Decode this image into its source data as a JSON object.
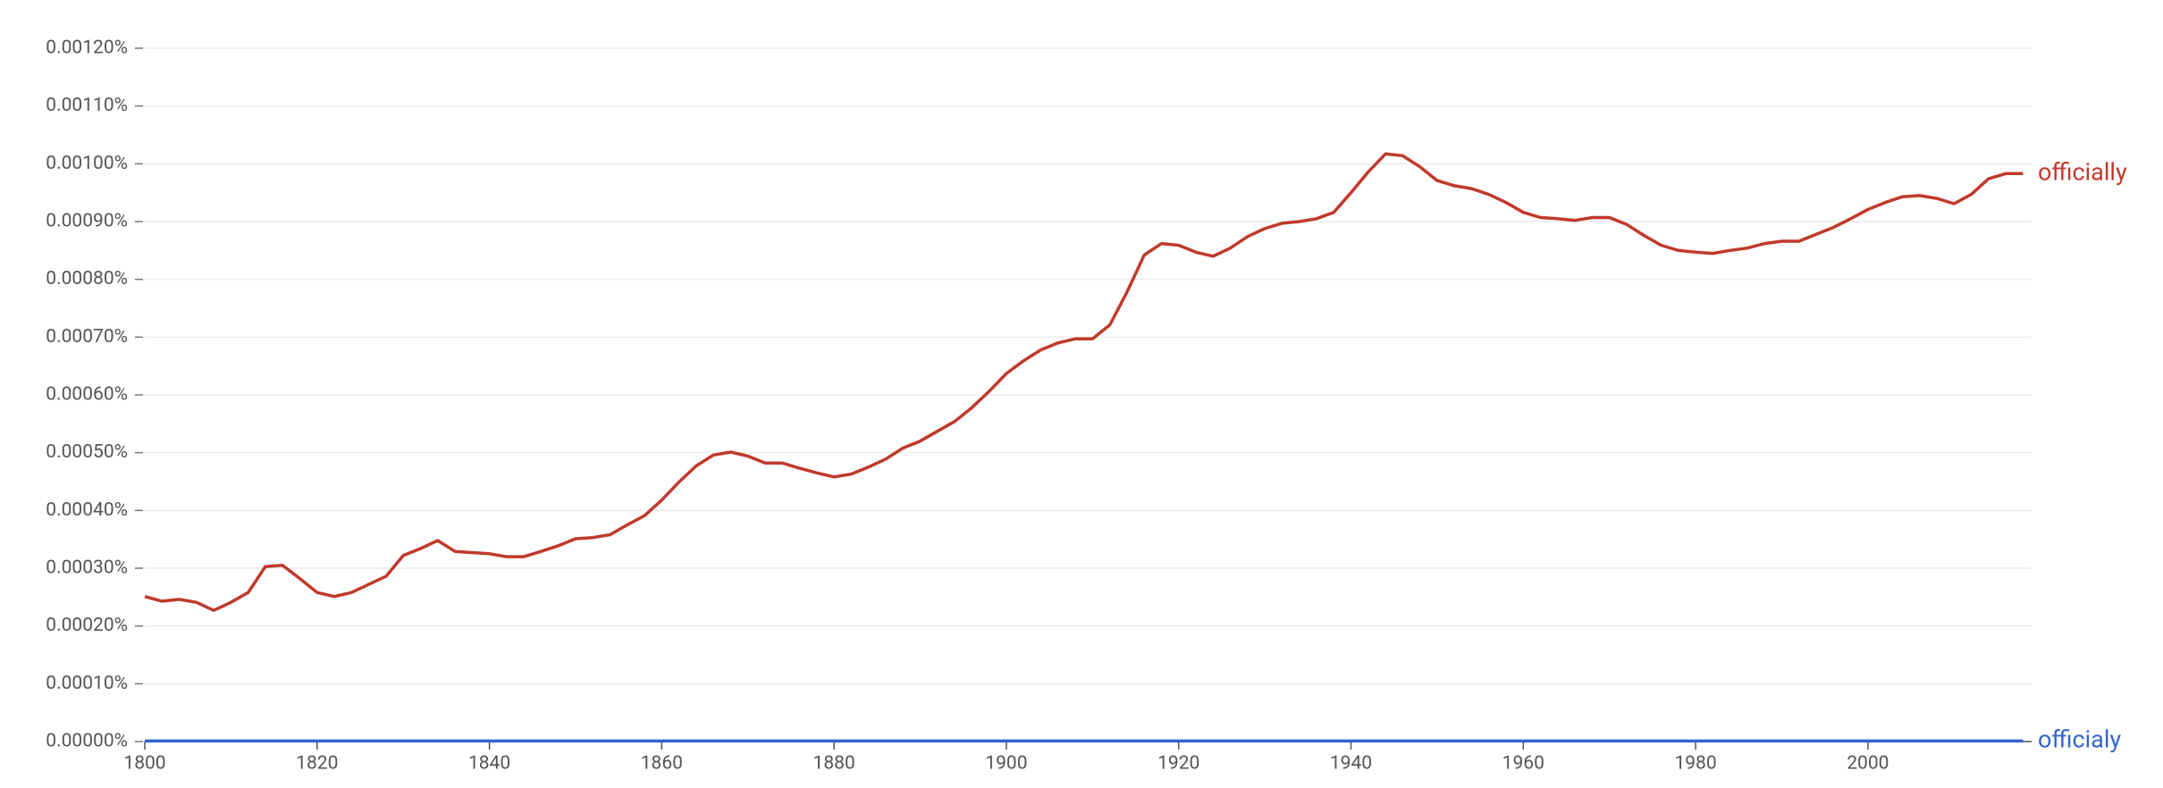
{
  "chart_data": {
    "type": "line",
    "x": [
      1800,
      1802,
      1804,
      1806,
      1808,
      1810,
      1812,
      1814,
      1816,
      1818,
      1820,
      1822,
      1824,
      1826,
      1828,
      1830,
      1832,
      1834,
      1836,
      1838,
      1840,
      1842,
      1844,
      1846,
      1848,
      1850,
      1852,
      1854,
      1856,
      1858,
      1860,
      1862,
      1864,
      1866,
      1868,
      1870,
      1872,
      1874,
      1876,
      1878,
      1880,
      1882,
      1884,
      1886,
      1888,
      1890,
      1892,
      1894,
      1896,
      1898,
      1900,
      1902,
      1904,
      1906,
      1908,
      1910,
      1912,
      1914,
      1916,
      1918,
      1920,
      1922,
      1924,
      1926,
      1928,
      1930,
      1932,
      1934,
      1936,
      1938,
      1940,
      1942,
      1944,
      1946,
      1948,
      1950,
      1952,
      1954,
      1956,
      1958,
      1960,
      1962,
      1964,
      1966,
      1968,
      1970,
      1972,
      1974,
      1976,
      1978,
      1980,
      1982,
      1984,
      1986,
      1988,
      1990,
      1992,
      1994,
      1996,
      1998,
      2000,
      2002,
      2004,
      2006,
      2008,
      2010,
      2012,
      2014,
      2016,
      2018
    ],
    "series": [
      {
        "name": "officially",
        "color": "#c0392b",
        "values": [
          0.000251,
          0.000243,
          0.000246,
          0.000241,
          0.000227,
          0.000241,
          0.000258,
          0.000303,
          0.000305,
          0.000282,
          0.000258,
          0.000251,
          0.000258,
          0.000272,
          0.000286,
          0.000322,
          0.000334,
          0.000348,
          0.000329,
          0.000327,
          0.000325,
          0.00032,
          0.00032,
          0.000329,
          0.000339,
          0.000351,
          0.000353,
          0.000358,
          0.000375,
          0.000391,
          0.000418,
          0.000449,
          0.000477,
          0.000496,
          0.000501,
          0.000494,
          0.000482,
          0.000482,
          0.000473,
          0.000465,
          0.000458,
          0.000463,
          0.000475,
          0.000489,
          0.000508,
          0.00052,
          0.000537,
          0.000554,
          0.000578,
          0.000606,
          0.000637,
          0.000659,
          0.000678,
          0.00069,
          0.000697,
          0.000697,
          0.000721,
          0.000778,
          0.000842,
          0.000862,
          0.000859,
          0.000847,
          0.00084,
          0.000854,
          0.000874,
          0.000888,
          0.000897,
          0.0009,
          0.000905,
          0.000916,
          0.00095,
          0.000986,
          0.001017,
          0.001014,
          0.000995,
          0.000971,
          0.000962,
          0.000957,
          0.000947,
          0.000933,
          0.000916,
          0.000907,
          0.000905,
          0.000902,
          0.000907,
          0.000907,
          0.000895,
          0.000876,
          0.000859,
          0.00085,
          0.000847,
          0.000845,
          0.00085,
          0.000854,
          0.000862,
          0.000866,
          0.000866,
          0.000878,
          0.00089,
          0.000905,
          0.000921,
          0.000933,
          0.000943,
          0.000945,
          0.00094,
          0.000931,
          0.000947,
          0.000974,
          0.000983,
          0.000983
        ]
      },
      {
        "name": "officialy",
        "color": "#3366cc",
        "values": [
          1e-06,
          1e-06,
          1e-06,
          1e-06,
          1e-06,
          1e-06,
          1e-06,
          1e-06,
          1e-06,
          1e-06,
          1e-06,
          1e-06,
          1e-06,
          1e-06,
          1e-06,
          1e-06,
          1e-06,
          1e-06,
          1e-06,
          1e-06,
          1e-06,
          1e-06,
          1e-06,
          1e-06,
          1e-06,
          1e-06,
          1e-06,
          1e-06,
          1e-06,
          1e-06,
          1e-06,
          1e-06,
          1e-06,
          1e-06,
          1e-06,
          1e-06,
          1e-06,
          1e-06,
          1e-06,
          1e-06,
          1e-06,
          1e-06,
          1e-06,
          1e-06,
          1e-06,
          1e-06,
          1e-06,
          1e-06,
          1e-06,
          1e-06,
          1e-06,
          1e-06,
          1e-06,
          1e-06,
          1e-06,
          1e-06,
          1e-06,
          1e-06,
          1e-06,
          1e-06,
          1e-06,
          1e-06,
          1e-06,
          1e-06,
          1e-06,
          1e-06,
          1e-06,
          1e-06,
          1e-06,
          1e-06,
          1e-06,
          1e-06,
          1e-06,
          1e-06,
          1e-06,
          1e-06,
          1e-06,
          1e-06,
          1e-06,
          1e-06,
          1e-06,
          1e-06,
          1e-06,
          1e-06,
          1e-06,
          1e-06,
          1e-06,
          1e-06,
          1e-06,
          1e-06,
          1e-06,
          1e-06,
          1e-06,
          1e-06,
          1e-06,
          1e-06,
          1e-06,
          1e-06,
          1e-06,
          1e-06,
          1e-06,
          1e-06,
          1e-06,
          1e-06,
          1e-06,
          1e-06,
          1e-06,
          1e-06,
          1e-06,
          1e-06
        ]
      }
    ],
    "xlim": [
      1800,
      2019
    ],
    "xticks": [
      1800,
      1820,
      1840,
      1860,
      1880,
      1900,
      1920,
      1940,
      1960,
      1980,
      2000
    ],
    "ylim": [
      0,
      0.0012
    ],
    "yticks": [
      {
        "value": 0,
        "label": "0.00000%"
      },
      {
        "value": 0.0001,
        "label": "0.00010%"
      },
      {
        "value": 0.0002,
        "label": "0.00020%"
      },
      {
        "value": 0.0003,
        "label": "0.00030%"
      },
      {
        "value": 0.0004,
        "label": "0.00040%"
      },
      {
        "value": 0.0005,
        "label": "0.00050%"
      },
      {
        "value": 0.0006,
        "label": "0.00060%"
      },
      {
        "value": 0.0007,
        "label": "0.00070%"
      },
      {
        "value": 0.0008,
        "label": "0.00080%"
      },
      {
        "value": 0.0009,
        "label": "0.00090%"
      },
      {
        "value": 0.001,
        "label": "0.00100%"
      },
      {
        "value": 0.0011,
        "label": "0.00110%"
      },
      {
        "value": 0.0012,
        "label": "0.00120%"
      }
    ],
    "grid": true
  }
}
